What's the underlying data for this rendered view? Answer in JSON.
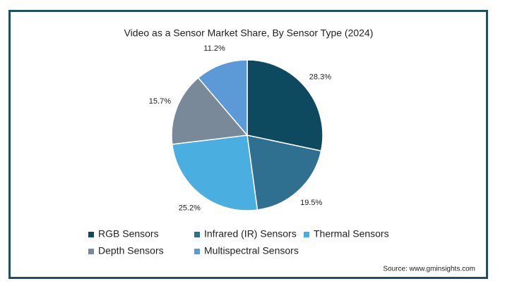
{
  "chart_data": {
    "type": "pie",
    "title": "Video as a Sensor Market Share, By Sensor Type (2024)",
    "categories": [
      "RGB Sensors",
      "Infrared (IR) Sensors",
      "Thermal Sensors",
      "Depth Sensors",
      "Multispectral Sensors"
    ],
    "values": [
      28.3,
      19.5,
      25.2,
      15.7,
      11.2
    ],
    "value_labels": [
      "28.3%",
      "19.5%",
      "25.2%",
      "15.7%",
      "11.2%"
    ],
    "colors": [
      "#0d4a5f",
      "#2f6f8f",
      "#4aaee0",
      "#7a8999",
      "#5b9ad6"
    ],
    "source": "Source: www.gminsights.com"
  }
}
